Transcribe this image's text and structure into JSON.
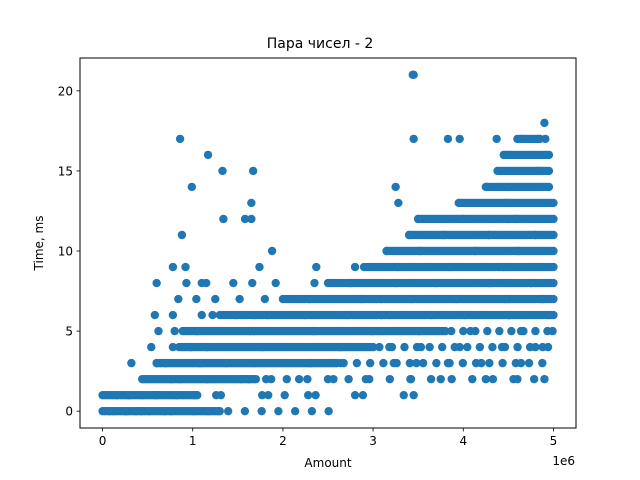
{
  "chart_data": {
    "type": "scatter",
    "title": "Пара чисел - 2",
    "xlabel": "Amount",
    "ylabel": "Time, ms",
    "x_offset_label": "1e6",
    "xlim": [
      -250000,
      5250000
    ],
    "ylim": [
      -1.05,
      22.05
    ],
    "x_ticks": [
      0,
      1000000,
      2000000,
      3000000,
      4000000,
      5000000
    ],
    "x_tick_labels": [
      "0",
      "1",
      "2",
      "3",
      "4",
      "5"
    ],
    "y_ticks": [
      0,
      5,
      10,
      15,
      20
    ],
    "y_tick_labels": [
      "0",
      "5",
      "10",
      "15",
      "20"
    ],
    "grid": false,
    "marker_color": "#1f77b4",
    "series": [
      {
        "dense_bands": [
          {
            "y": 0,
            "x_start": 0,
            "x_end": 1300000
          },
          {
            "y": 1,
            "x_start": 0,
            "x_end": 1050000
          },
          {
            "y": 2,
            "x_start": 450000,
            "x_end": 1700000
          },
          {
            "y": 3,
            "x_start": 600000,
            "x_end": 2600000
          },
          {
            "y": 4,
            "x_start": 850000,
            "x_end": 3000000
          },
          {
            "y": 5,
            "x_start": 900000,
            "x_end": 3800000
          },
          {
            "y": 6,
            "x_start": 1300000,
            "x_end": 5000000
          },
          {
            "y": 7,
            "x_start": 2000000,
            "x_end": 5000000
          },
          {
            "y": 8,
            "x_start": 2500000,
            "x_end": 5000000
          },
          {
            "y": 9,
            "x_start": 2900000,
            "x_end": 5000000
          },
          {
            "y": 10,
            "x_start": 3150000,
            "x_end": 5000000
          },
          {
            "y": 11,
            "x_start": 3400000,
            "x_end": 5000000
          },
          {
            "y": 12,
            "x_start": 3500000,
            "x_end": 5000000
          },
          {
            "y": 13,
            "x_start": 3950000,
            "x_end": 5000000
          },
          {
            "y": 14,
            "x_start": 4250000,
            "x_end": 4950000
          },
          {
            "y": 15,
            "x_start": 4400000,
            "x_end": 4950000
          },
          {
            "y": 16,
            "x_start": 4450000,
            "x_end": 4950000
          },
          {
            "y": 17,
            "x_start": 4600000,
            "x_end": 4850000
          }
        ],
        "sparse_bands": [
          {
            "y": 0,
            "x_start": 1300000,
            "x_end": 2600000,
            "count": 7
          },
          {
            "y": 1,
            "x_start": 1050000,
            "x_end": 3150000,
            "count": 4
          },
          {
            "y": 2,
            "x_start": 1700000,
            "x_end": 4900000,
            "count": 14
          },
          {
            "y": 3,
            "x_start": 2600000,
            "x_end": 4950000,
            "count": 16
          },
          {
            "y": 4,
            "x_start": 3000000,
            "x_end": 4950000,
            "count": 14
          },
          {
            "y": 5,
            "x_start": 3800000,
            "x_end": 5000000,
            "count": 9
          }
        ],
        "points": [
          [
            80000,
            0
          ],
          [
            130000,
            0
          ],
          [
            250000,
            0
          ],
          [
            370000,
            0
          ],
          [
            430000,
            0
          ],
          [
            520000,
            0
          ],
          [
            690000,
            0
          ],
          [
            760000,
            0
          ],
          [
            1010000,
            0
          ],
          [
            1170000,
            0
          ],
          [
            1290000,
            0
          ],
          [
            160000,
            1
          ],
          [
            300000,
            1
          ],
          [
            440000,
            1
          ],
          [
            580000,
            1
          ],
          [
            610000,
            1
          ],
          [
            820000,
            1
          ],
          [
            1010000,
            1
          ],
          [
            1040000,
            1
          ],
          [
            1260000,
            1
          ],
          [
            1770000,
            1
          ],
          [
            2020000,
            1
          ],
          [
            2280000,
            1
          ],
          [
            2800000,
            1
          ],
          [
            3340000,
            1
          ],
          [
            3450000,
            1
          ],
          [
            440000,
            2
          ],
          [
            760000,
            2
          ],
          [
            860000,
            2
          ],
          [
            1160000,
            2
          ],
          [
            1540000,
            2
          ],
          [
            1620000,
            2
          ],
          [
            1870000,
            2
          ],
          [
            2180000,
            2
          ],
          [
            2560000,
            2
          ],
          [
            2920000,
            2
          ],
          [
            3420000,
            2
          ],
          [
            3750000,
            2
          ],
          [
            4250000,
            2
          ],
          [
            4600000,
            2
          ],
          [
            4900000,
            2
          ],
          [
            320000,
            3
          ],
          [
            600000,
            3
          ],
          [
            700000,
            3
          ],
          [
            1080000,
            3
          ],
          [
            1370000,
            3
          ],
          [
            2300000,
            3
          ],
          [
            2640000,
            3
          ],
          [
            3230000,
            3
          ],
          [
            3480000,
            3
          ],
          [
            3830000,
            3
          ],
          [
            4200000,
            3
          ],
          [
            4640000,
            3
          ],
          [
            540000,
            4
          ],
          [
            780000,
            4
          ],
          [
            980000,
            4
          ],
          [
            1160000,
            4
          ],
          [
            1770000,
            4
          ],
          [
            2640000,
            4
          ],
          [
            3180000,
            4
          ],
          [
            3530000,
            4
          ],
          [
            3960000,
            4
          ],
          [
            4430000,
            4
          ],
          [
            4800000,
            4
          ],
          [
            4940000,
            4
          ],
          [
            620000,
            5
          ],
          [
            800000,
            5
          ],
          [
            890000,
            5
          ],
          [
            1050000,
            5
          ],
          [
            1640000,
            5
          ],
          [
            2340000,
            5
          ],
          [
            2980000,
            5
          ],
          [
            3510000,
            5
          ],
          [
            4080000,
            5
          ],
          [
            4640000,
            5
          ],
          [
            4990000,
            5
          ],
          [
            580000,
            6
          ],
          [
            780000,
            6
          ],
          [
            1100000,
            6
          ],
          [
            1220000,
            6
          ],
          [
            1480000,
            6
          ],
          [
            1830000,
            6
          ],
          [
            2240000,
            6
          ],
          [
            2710000,
            6
          ],
          [
            3190000,
            6
          ],
          [
            3650000,
            6
          ],
          [
            4010000,
            6
          ],
          [
            4510000,
            6
          ],
          [
            4950000,
            6
          ],
          [
            840000,
            7
          ],
          [
            1040000,
            7
          ],
          [
            1250000,
            7
          ],
          [
            1520000,
            7
          ],
          [
            1800000,
            7
          ],
          [
            2300000,
            7
          ],
          [
            2880000,
            7
          ],
          [
            3420000,
            7
          ],
          [
            3920000,
            7
          ],
          [
            4460000,
            7
          ],
          [
            4880000,
            7
          ],
          [
            600000,
            8
          ],
          [
            930000,
            8
          ],
          [
            1100000,
            8
          ],
          [
            1150000,
            8
          ],
          [
            1450000,
            8
          ],
          [
            1660000,
            8
          ],
          [
            1920000,
            8
          ],
          [
            2350000,
            8
          ],
          [
            2750000,
            8
          ],
          [
            3250000,
            8
          ],
          [
            3700000,
            8
          ],
          [
            4290000,
            8
          ],
          [
            4750000,
            8
          ],
          [
            780000,
            9
          ],
          [
            920000,
            9
          ],
          [
            1740000,
            9
          ],
          [
            2370000,
            9
          ],
          [
            2800000,
            9
          ],
          [
            3270000,
            9
          ],
          [
            3850000,
            9
          ],
          [
            4450000,
            9
          ],
          [
            1880000,
            10
          ],
          [
            3150000,
            10
          ],
          [
            3520000,
            10
          ],
          [
            4130000,
            10
          ],
          [
            4610000,
            10
          ],
          [
            880000,
            11
          ],
          [
            3400000,
            11
          ],
          [
            3780000,
            11
          ],
          [
            4280000,
            11
          ],
          [
            4800000,
            11
          ],
          [
            1340000,
            12
          ],
          [
            1580000,
            12
          ],
          [
            1650000,
            12
          ],
          [
            3500000,
            12
          ],
          [
            4000000,
            12
          ],
          [
            4590000,
            12
          ],
          [
            1650000,
            13
          ],
          [
            3280000,
            13
          ],
          [
            3960000,
            13
          ],
          [
            4470000,
            13
          ],
          [
            990000,
            14
          ],
          [
            3250000,
            14
          ],
          [
            4260000,
            14
          ],
          [
            1330000,
            15
          ],
          [
            1670000,
            15
          ],
          [
            4380000,
            15
          ],
          [
            4830000,
            15
          ],
          [
            1170000,
            16
          ],
          [
            4450000,
            16
          ],
          [
            4920000,
            16
          ],
          [
            860000,
            17
          ],
          [
            3450000,
            17
          ],
          [
            3830000,
            17
          ],
          [
            3960000,
            17
          ],
          [
            4370000,
            17
          ],
          [
            4650000,
            17
          ],
          [
            4830000,
            17
          ],
          [
            4910000,
            17
          ],
          [
            4900000,
            18
          ],
          [
            3440000,
            21
          ],
          [
            3450000,
            21
          ]
        ]
      }
    ]
  }
}
